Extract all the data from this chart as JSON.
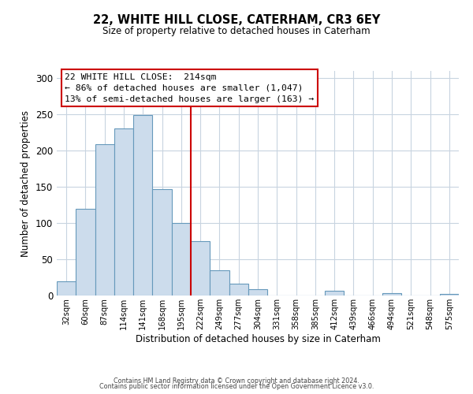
{
  "title": "22, WHITE HILL CLOSE, CATERHAM, CR3 6EY",
  "subtitle": "Size of property relative to detached houses in Caterham",
  "xlabel": "Distribution of detached houses by size in Caterham",
  "ylabel": "Number of detached properties",
  "bin_labels": [
    "32sqm",
    "60sqm",
    "87sqm",
    "114sqm",
    "141sqm",
    "168sqm",
    "195sqm",
    "222sqm",
    "249sqm",
    "277sqm",
    "304sqm",
    "331sqm",
    "358sqm",
    "385sqm",
    "412sqm",
    "439sqm",
    "466sqm",
    "494sqm",
    "521sqm",
    "548sqm",
    "575sqm"
  ],
  "bar_heights": [
    20,
    120,
    209,
    231,
    249,
    147,
    100,
    75,
    35,
    16,
    9,
    0,
    0,
    0,
    6,
    0,
    0,
    3,
    0,
    0,
    2
  ],
  "bar_color": "#ccdcec",
  "bar_edge_color": "#6699bb",
  "ylim": [
    0,
    310
  ],
  "yticks": [
    0,
    50,
    100,
    150,
    200,
    250,
    300
  ],
  "vline_x": 7,
  "vline_color": "#cc0000",
  "annotation_title": "22 WHITE HILL CLOSE:  214sqm",
  "annotation_line1": "← 86% of detached houses are smaller (1,047)",
  "annotation_line2": "13% of semi-detached houses are larger (163) →",
  "annotation_box_color": "#ffffff",
  "annotation_box_edge": "#cc0000",
  "footer1": "Contains HM Land Registry data © Crown copyright and database right 2024.",
  "footer2": "Contains public sector information licensed under the Open Government Licence v3.0.",
  "background_color": "#ffffff",
  "grid_color": "#c8d4e0"
}
